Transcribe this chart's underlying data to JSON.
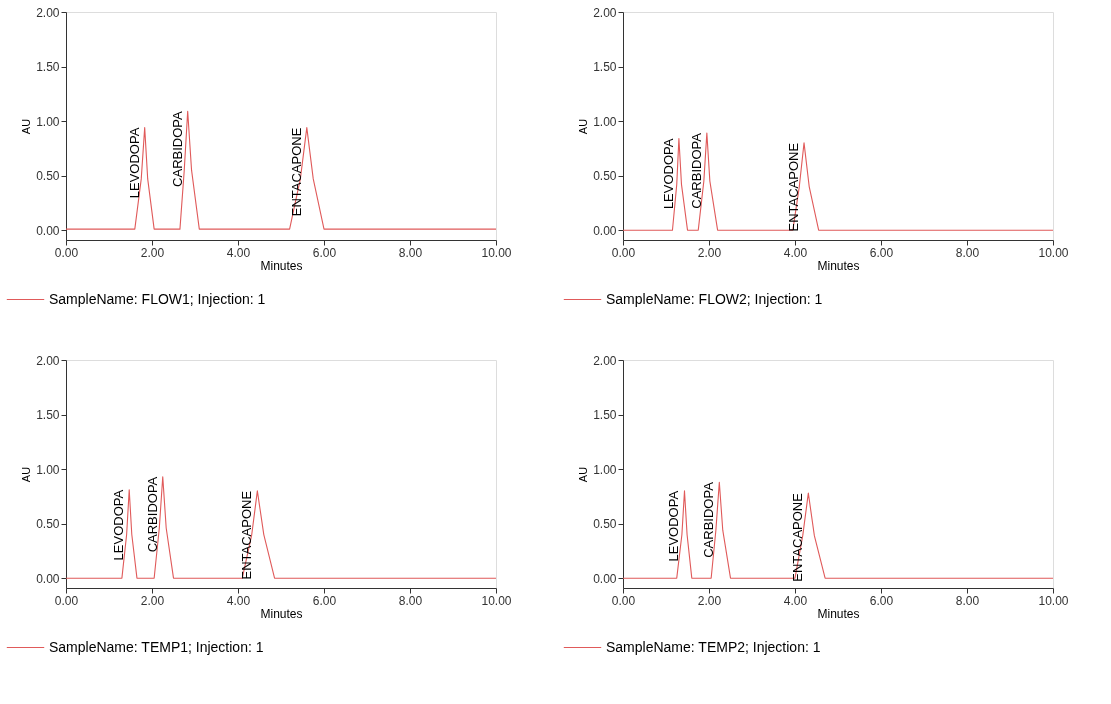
{
  "chart_data": [
    {
      "type": "line",
      "xlabel": "Minutes",
      "ylabel": "AU",
      "xlim": [
        0,
        10
      ],
      "ylim": [
        -0.09,
        2.0
      ],
      "xticks": [
        {
          "value": 0,
          "label": "0.00"
        },
        {
          "value": 2,
          "label": "2.00"
        },
        {
          "value": 4,
          "label": "4.00"
        },
        {
          "value": 6,
          "label": "6.00"
        },
        {
          "value": 8,
          "label": "8.00"
        },
        {
          "value": 10,
          "label": "10.00"
        }
      ],
      "yticks": [
        {
          "value": 0,
          "label": "0.00"
        },
        {
          "value": 0.5,
          "label": "0.50"
        },
        {
          "value": 1,
          "label": "1.00"
        },
        {
          "value": 1.5,
          "label": "1.50"
        },
        {
          "value": 2,
          "label": "2.00"
        }
      ],
      "grid": false,
      "legend": "bottom left",
      "marker": "none",
      "line_style": "solid",
      "series": [
        {
          "name": "SampleName: FLOW1; Injection: 1",
          "color": "#e05a5a",
          "x": [
            0,
            1.6,
            1.75,
            1.83,
            1.9,
            2.05,
            2.65,
            2.75,
            2.83,
            2.92,
            3.1,
            5.2,
            5.45,
            5.6,
            5.75,
            6.0,
            10
          ],
          "values": [
            0.01,
            0.01,
            0.47,
            0.94,
            0.47,
            0.01,
            0.01,
            0.55,
            1.09,
            0.55,
            0.01,
            0.01,
            0.47,
            0.94,
            0.47,
            0.01,
            0.01
          ]
        }
      ],
      "annotations": [
        {
          "text": "LEVODOPA",
          "x": 1.83,
          "y": 0.94
        },
        {
          "text": "CARBIDOPA",
          "x": 2.83,
          "y": 1.09
        },
        {
          "text": "ENTACAPONE",
          "x": 5.6,
          "y": 0.94
        }
      ]
    },
    {
      "type": "line",
      "xlabel": "Minutes",
      "ylabel": "AU",
      "xlim": [
        0,
        10
      ],
      "ylim": [
        -0.09,
        2.0
      ],
      "xticks": [
        {
          "value": 0,
          "label": "0.00"
        },
        {
          "value": 2,
          "label": "2.00"
        },
        {
          "value": 4,
          "label": "4.00"
        },
        {
          "value": 6,
          "label": "6.00"
        },
        {
          "value": 8,
          "label": "8.00"
        },
        {
          "value": 10,
          "label": "10.00"
        }
      ],
      "yticks": [
        {
          "value": 0,
          "label": "0.00"
        },
        {
          "value": 0.5,
          "label": "0.50"
        },
        {
          "value": 1,
          "label": "1.00"
        },
        {
          "value": 1.5,
          "label": "1.50"
        },
        {
          "value": 2,
          "label": "2.00"
        }
      ],
      "grid": false,
      "legend": "bottom left",
      "marker": "none",
      "line_style": "solid",
      "series": [
        {
          "name": "SampleName: FLOW2; Injection: 1",
          "color": "#e05a5a",
          "x": [
            0,
            1.15,
            1.25,
            1.3,
            1.36,
            1.5,
            1.75,
            1.88,
            1.95,
            2.02,
            2.2,
            3.95,
            4.1,
            4.21,
            4.33,
            4.55,
            10
          ],
          "values": [
            0,
            0,
            0.42,
            0.84,
            0.42,
            0,
            0,
            0.45,
            0.89,
            0.45,
            0,
            0,
            0.4,
            0.8,
            0.4,
            0,
            0
          ]
        }
      ],
      "annotations": [
        {
          "text": "LEVODOPA",
          "x": 1.3,
          "y": 0.84
        },
        {
          "text": "CARBIDOPA",
          "x": 1.95,
          "y": 0.89
        },
        {
          "text": "ENTACAPONE",
          "x": 4.21,
          "y": 0.8
        }
      ]
    },
    {
      "type": "line",
      "xlabel": "Minutes",
      "ylabel": "AU",
      "xlim": [
        0,
        10
      ],
      "ylim": [
        -0.09,
        2.0
      ],
      "xticks": [
        {
          "value": 0,
          "label": "0.00"
        },
        {
          "value": 2,
          "label": "2.00"
        },
        {
          "value": 4,
          "label": "4.00"
        },
        {
          "value": 6,
          "label": "6.00"
        },
        {
          "value": 8,
          "label": "8.00"
        },
        {
          "value": 10,
          "label": "10.00"
        }
      ],
      "yticks": [
        {
          "value": 0,
          "label": "0.00"
        },
        {
          "value": 0.5,
          "label": "0.50"
        },
        {
          "value": 1,
          "label": "1.00"
        },
        {
          "value": 1.5,
          "label": "1.50"
        },
        {
          "value": 2,
          "label": "2.00"
        }
      ],
      "grid": false,
      "legend": "bottom left",
      "marker": "none",
      "line_style": "solid",
      "series": [
        {
          "name": "SampleName: TEMP1; Injection: 1",
          "color": "#e05a5a",
          "x": [
            0,
            1.3,
            1.41,
            1.47,
            1.53,
            1.65,
            2.05,
            2.17,
            2.25,
            2.33,
            2.5,
            4.1,
            4.32,
            4.45,
            4.6,
            4.85,
            10
          ],
          "values": [
            0,
            0,
            0.4,
            0.81,
            0.4,
            0,
            0,
            0.46,
            0.93,
            0.46,
            0,
            0,
            0.4,
            0.8,
            0.4,
            0,
            0
          ]
        }
      ],
      "annotations": [
        {
          "text": "LEVODOPA",
          "x": 1.47,
          "y": 0.81
        },
        {
          "text": "CARBIDOPA",
          "x": 2.25,
          "y": 0.93
        },
        {
          "text": "ENTACAPONE",
          "x": 4.45,
          "y": 0.8
        }
      ]
    },
    {
      "type": "line",
      "xlabel": "Minutes",
      "ylabel": "AU",
      "xlim": [
        0,
        10
      ],
      "ylim": [
        -0.09,
        2.0
      ],
      "xticks": [
        {
          "value": 0,
          "label": "0.00"
        },
        {
          "value": 2,
          "label": "2.00"
        },
        {
          "value": 4,
          "label": "4.00"
        },
        {
          "value": 6,
          "label": "6.00"
        },
        {
          "value": 8,
          "label": "8.00"
        },
        {
          "value": 10,
          "label": "10.00"
        }
      ],
      "yticks": [
        {
          "value": 0,
          "label": "0.00"
        },
        {
          "value": 0.5,
          "label": "0.50"
        },
        {
          "value": 1,
          "label": "1.00"
        },
        {
          "value": 1.5,
          "label": "1.50"
        },
        {
          "value": 2,
          "label": "2.00"
        }
      ],
      "grid": false,
      "legend": "bottom left",
      "marker": "none",
      "line_style": "solid",
      "series": [
        {
          "name": "SampleName: TEMP2; Injection: 1",
          "color": "#e05a5a",
          "x": [
            0,
            1.25,
            1.37,
            1.43,
            1.49,
            1.6,
            2.05,
            2.16,
            2.24,
            2.32,
            2.5,
            4.0,
            4.18,
            4.31,
            4.45,
            4.7,
            10
          ],
          "values": [
            0,
            0,
            0.4,
            0.8,
            0.4,
            0,
            0,
            0.44,
            0.88,
            0.44,
            0,
            0,
            0.39,
            0.78,
            0.39,
            0,
            0
          ]
        }
      ],
      "annotations": [
        {
          "text": "LEVODOPA",
          "x": 1.43,
          "y": 0.8
        },
        {
          "text": "CARBIDOPA",
          "x": 2.24,
          "y": 0.88
        },
        {
          "text": "ENTACAPONE",
          "x": 4.31,
          "y": 0.78
        }
      ]
    }
  ]
}
